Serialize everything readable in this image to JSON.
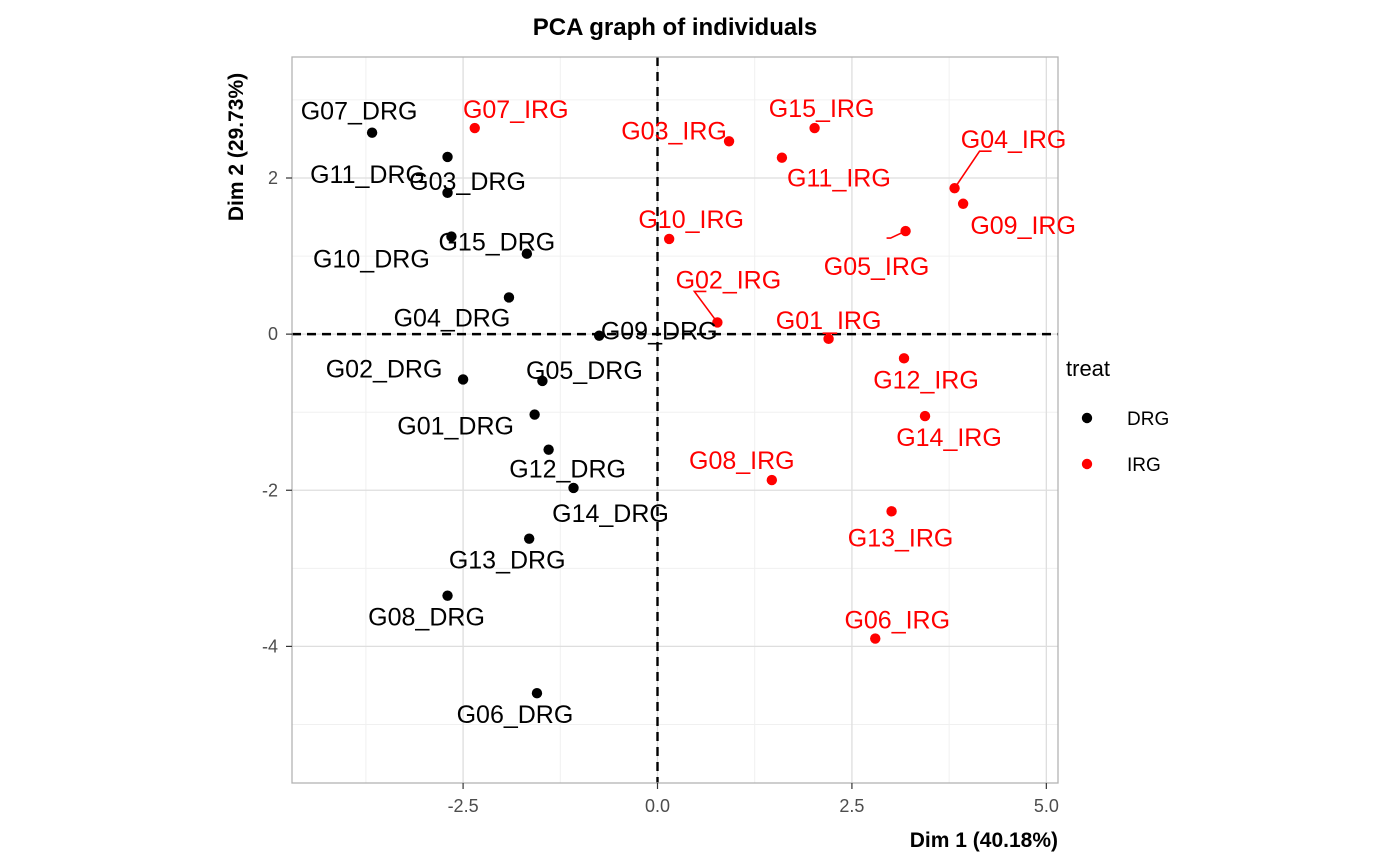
{
  "chart_data": {
    "type": "scatter",
    "title": "PCA graph of individuals",
    "xlabel": "Dim 1 (40.18%)",
    "ylabel": "Dim 2 (29.73%)",
    "xlim": [
      -4.7,
      5.15
    ],
    "ylim": [
      -5.75,
      3.55
    ],
    "xticks": [
      -2.5,
      0,
      2.5,
      5
    ],
    "xtick_labels": [
      "-2.5",
      "0.0",
      "2.5",
      "5.0"
    ],
    "yticks": [
      -4,
      -2,
      0,
      2
    ],
    "ytick_labels": [
      "-4",
      "-2",
      "0",
      "2"
    ],
    "grid": true,
    "reference_lines": [
      {
        "axis": "x",
        "value": 0,
        "style": "dashed"
      },
      {
        "axis": "y",
        "value": 0,
        "style": "dashed"
      }
    ],
    "legend": {
      "title": "treat",
      "position": "right",
      "entries": [
        {
          "name": "DRG",
          "color": "#000000"
        },
        {
          "name": "IRG",
          "color": "#ff0000"
        }
      ]
    },
    "series": [
      {
        "name": "DRG",
        "color": "#000000",
        "points": [
          {
            "label": "G07_DRG",
            "x": -3.67,
            "y": 2.58
          },
          {
            "label": "G11_DRG",
            "x": -2.7,
            "y": 2.27
          },
          {
            "label": "G03_DRG",
            "x": -2.7,
            "y": 1.81
          },
          {
            "label": "G10_DRG",
            "x": -2.65,
            "y": 1.25
          },
          {
            "label": "G15_DRG",
            "x": -1.68,
            "y": 1.03
          },
          {
            "label": "G04_DRG",
            "x": -1.91,
            "y": 0.47
          },
          {
            "label": "G09_DRG",
            "x": -0.75,
            "y": -0.02
          },
          {
            "label": "G02_DRG",
            "x": -2.5,
            "y": -0.58
          },
          {
            "label": "G05_DRG",
            "x": -1.48,
            "y": -0.6
          },
          {
            "label": "G01_DRG",
            "x": -1.58,
            "y": -1.03
          },
          {
            "label": "G12_DRG",
            "x": -1.4,
            "y": -1.48
          },
          {
            "label": "G14_DRG",
            "x": -1.08,
            "y": -1.97
          },
          {
            "label": "G13_DRG",
            "x": -1.65,
            "y": -2.62
          },
          {
            "label": "G08_DRG",
            "x": -2.7,
            "y": -3.35
          },
          {
            "label": "G06_DRG",
            "x": -1.55,
            "y": -4.6
          }
        ]
      },
      {
        "name": "IRG",
        "color": "#ff0000",
        "points": [
          {
            "label": "G07_IRG",
            "x": -2.35,
            "y": 2.64
          },
          {
            "label": "G03_IRG",
            "x": 0.92,
            "y": 2.47
          },
          {
            "label": "G15_IRG",
            "x": 2.02,
            "y": 2.64
          },
          {
            "label": "G11_IRG",
            "x": 1.6,
            "y": 2.26
          },
          {
            "label": "G04_IRG",
            "x": 3.82,
            "y": 1.87
          },
          {
            "label": "G09_IRG",
            "x": 3.93,
            "y": 1.67
          },
          {
            "label": "G10_IRG",
            "x": 0.15,
            "y": 1.22
          },
          {
            "label": "G05_IRG",
            "x": 3.19,
            "y": 1.32
          },
          {
            "label": "G02_IRG",
            "x": 0.77,
            "y": 0.15
          },
          {
            "label": "G01_IRG",
            "x": 2.2,
            "y": -0.06
          },
          {
            "label": "G12_IRG",
            "x": 3.17,
            "y": -0.31
          },
          {
            "label": "G14_IRG",
            "x": 3.44,
            "y": -1.05
          },
          {
            "label": "G08_IRG",
            "x": 1.47,
            "y": -1.87
          },
          {
            "label": "G13_IRG",
            "x": 3.01,
            "y": -2.27
          },
          {
            "label": "G06_IRG",
            "x": 2.8,
            "y": -3.9
          }
        ]
      }
    ]
  }
}
